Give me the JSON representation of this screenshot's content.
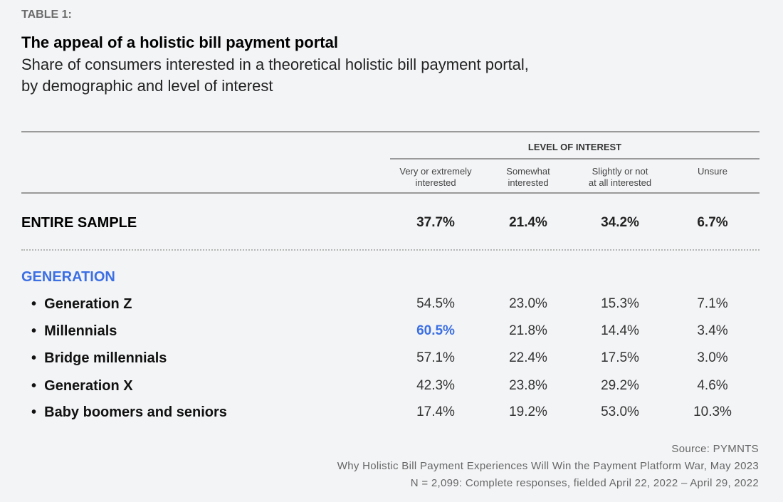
{
  "label": "TABLE 1:",
  "title": "The appeal of a holistic bill payment portal",
  "subtitle_line1": "Share of consumers interested in a theoretical holistic bill payment portal,",
  "subtitle_line2": "by demographic and level of interest",
  "group_header": "LEVEL OF INTEREST",
  "columns": [
    {
      "line1": "Very or extremely",
      "line2": "interested"
    },
    {
      "line1": "Somewhat",
      "line2": "interested"
    },
    {
      "line1": "Slightly or not",
      "line2": "at all interested"
    },
    {
      "line1": "Unsure",
      "line2": ""
    }
  ],
  "entire_sample": {
    "label": "ENTIRE SAMPLE",
    "values": [
      "37.7%",
      "21.4%",
      "34.2%",
      "6.7%"
    ]
  },
  "section": "GENERATION",
  "rows": [
    {
      "label": "Generation Z",
      "values": [
        "54.5%",
        "23.0%",
        "15.3%",
        "7.1%"
      ]
    },
    {
      "label": "Millennials",
      "values": [
        "60.5%",
        "21.8%",
        "14.4%",
        "3.4%"
      ]
    },
    {
      "label": "Bridge millennials",
      "values": [
        "57.1%",
        "22.4%",
        "17.5%",
        "3.0%"
      ]
    },
    {
      "label": "Generation X",
      "values": [
        "42.3%",
        "23.8%",
        "29.2%",
        "4.6%"
      ]
    },
    {
      "label": "Baby boomers and seniors",
      "values": [
        "17.4%",
        "19.2%",
        "53.0%",
        "10.3%"
      ]
    }
  ],
  "bullet": "•",
  "source": "Source: PYMNTS",
  "report": "Why Holistic Bill Payment Experiences Will Win the Payment Platform War, May 2023",
  "sample_note": "N = 2,099: Complete responses, fielded April 22, 2022 – April 29, 2022",
  "colors": {
    "accent": "#3b6fe3",
    "background": "#f3f4f6"
  }
}
